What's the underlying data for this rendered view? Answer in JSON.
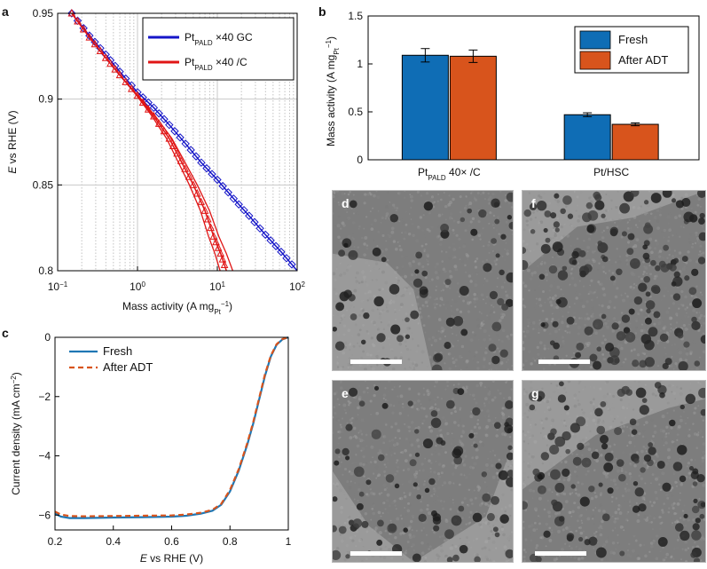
{
  "panel_labels": {
    "a": "a",
    "b": "b",
    "c": "c",
    "d": "d",
    "e": "e",
    "f": "f",
    "g": "g"
  },
  "chart_data": [
    {
      "id": "a",
      "type": "line",
      "xscale": "log",
      "xlim": [
        0.1,
        100
      ],
      "ylim": [
        0.8,
        0.95
      ],
      "xticks": [
        "10",
        "10",
        "10",
        "10"
      ],
      "xtick_exponents": [
        "−1",
        "0",
        "1",
        "2"
      ],
      "xtick_values": [
        0.1,
        1,
        10,
        100
      ],
      "yticks": [
        "0.8",
        "0.85",
        "0.9",
        "0.95"
      ],
      "ytick_values": [
        0.8,
        0.85,
        0.9,
        0.95
      ],
      "xlabel": "Mass activity (A mg",
      "xlabel_sub": "Pt",
      "xlabel_sup": "−1",
      "xlabel_end": ")",
      "ylabel_italic": "E",
      "ylabel": " vs RHE (V)",
      "grid": true,
      "legend_position": "top-right",
      "series": [
        {
          "name": "Pt",
          "name_sub": "PALD",
          "name_end": " ×40 GC",
          "color": "#1515c8",
          "marker": "diamond",
          "x": [
            0.15,
            0.25,
            0.4,
            0.6,
            1.0,
            1.6,
            2.5,
            4.0,
            6.3,
            10,
            16,
            25,
            40,
            63,
            100
          ],
          "y": [
            0.95,
            0.937,
            0.926,
            0.916,
            0.904,
            0.895,
            0.885,
            0.874,
            0.863,
            0.853,
            0.842,
            0.832,
            0.821,
            0.811,
            0.8
          ]
        },
        {
          "name": "Pt",
          "name_sub": "PALD",
          "name_end": " ×40 /C",
          "color": "#e01515",
          "marker": "triangle",
          "x": [
            0.15,
            0.25,
            0.4,
            0.6,
            1.0,
            1.6,
            2.5,
            3.5,
            5.0,
            7.0,
            9.0,
            11,
            13
          ],
          "y": [
            0.95,
            0.936,
            0.924,
            0.914,
            0.902,
            0.89,
            0.877,
            0.864,
            0.85,
            0.835,
            0.82,
            0.81,
            0.8
          ],
          "spread_x": [
            1,
            1,
            1,
            1,
            1.02,
            1.05,
            1.08,
            1.1,
            1.12,
            1.14,
            1.16,
            1.18,
            1.2
          ]
        }
      ]
    },
    {
      "id": "b",
      "type": "bar",
      "categories": [
        "Pt",
        "Pt/HSC"
      ],
      "category_subs": [
        "PALD",
        ""
      ],
      "category_ends": [
        " 40× /C",
        ""
      ],
      "ylim": [
        0,
        1.5
      ],
      "yticks": [
        "0",
        "0.5",
        "1",
        "1.5"
      ],
      "ytick_values": [
        0,
        0.5,
        1,
        1.5
      ],
      "ylabel": "Mass activity (A mg",
      "ylabel_sub": "Pt",
      "ylabel_sup": "−1",
      "ylabel_end": ")",
      "legend_position": "top-right",
      "series": [
        {
          "name": "Fresh",
          "color": "#0f6db5",
          "values": [
            1.09,
            0.47
          ],
          "errors": [
            0.07,
            0.02
          ]
        },
        {
          "name": "After ADT",
          "color": "#d8541c",
          "values": [
            1.08,
            0.37
          ],
          "errors": [
            0.065,
            0.015
          ]
        }
      ]
    },
    {
      "id": "c",
      "type": "line",
      "xlim": [
        0.2,
        1.0
      ],
      "ylim": [
        -6.5,
        0
      ],
      "xticks": [
        "0.2",
        "0.4",
        "0.6",
        "0.8",
        "1"
      ],
      "xtick_values": [
        0.2,
        0.4,
        0.6,
        0.8,
        1.0
      ],
      "yticks": [
        "0",
        "−2",
        "−4",
        "−6"
      ],
      "ytick_values": [
        0,
        -2,
        -4,
        -6
      ],
      "xlabel_italic": "E",
      "xlabel": " vs RHE (V)",
      "ylabel": "Current density (mA cm",
      "ylabel_sup": "−2",
      "ylabel_end": ")",
      "legend_position": "top-left",
      "series": [
        {
          "name": "Fresh",
          "color": "#1f77b4",
          "style": "solid",
          "x": [
            0.2,
            0.22,
            0.25,
            0.3,
            0.4,
            0.5,
            0.6,
            0.65,
            0.7,
            0.74,
            0.77,
            0.8,
            0.83,
            0.86,
            0.88,
            0.9,
            0.92,
            0.94,
            0.96,
            0.98,
            1.0
          ],
          "y": [
            -5.95,
            -6.05,
            -6.1,
            -6.1,
            -6.08,
            -6.07,
            -6.05,
            -6.02,
            -5.95,
            -5.85,
            -5.65,
            -5.2,
            -4.5,
            -3.6,
            -2.9,
            -2.1,
            -1.3,
            -0.65,
            -0.25,
            -0.07,
            0.0
          ]
        },
        {
          "name": "After ADT",
          "color": "#d8541c",
          "style": "dashed",
          "x": [
            0.2,
            0.22,
            0.25,
            0.3,
            0.4,
            0.5,
            0.6,
            0.65,
            0.7,
            0.74,
            0.77,
            0.8,
            0.83,
            0.86,
            0.88,
            0.9,
            0.92,
            0.94,
            0.96,
            0.98,
            1.0
          ],
          "y": [
            -5.88,
            -5.98,
            -6.03,
            -6.04,
            -6.03,
            -6.02,
            -6.01,
            -5.98,
            -5.92,
            -5.82,
            -5.62,
            -5.15,
            -4.45,
            -3.55,
            -2.85,
            -2.05,
            -1.25,
            -0.62,
            -0.23,
            -0.06,
            0.0
          ]
        }
      ]
    }
  ]
}
